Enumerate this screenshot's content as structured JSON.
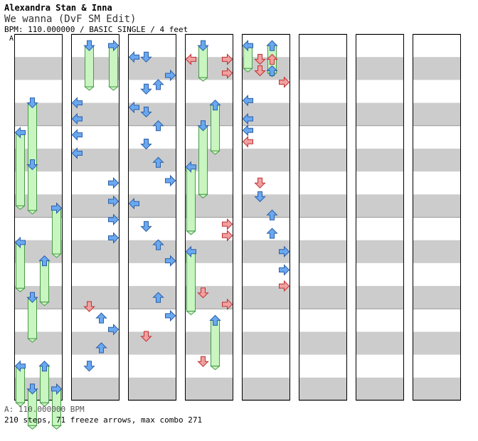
{
  "header": {
    "artist": "Alexandra Stan & Inna",
    "title": "We wanna (DvF SM Edit)",
    "info": "BPM: 110.000000 / BASIC SINGLE / 4 feet"
  },
  "bpm_marker": "A",
  "footer": {
    "bpm_change": "A: 110.000000 BPM",
    "stats": "210 steps, 71 freeze arrows, max combo 271"
  },
  "colors": {
    "band": "#cccccc",
    "quarter_arrow": "#6aa8f0",
    "eighth_arrow": "#f0a0a0",
    "freeze": "#c8f5c0",
    "freeze_border": "#4a9a4a"
  },
  "chart": {
    "lanes": [
      "left",
      "down",
      "up",
      "right"
    ],
    "column_count": 8,
    "rows_per_column": 16,
    "notes": [
      {
        "col": 0,
        "lane": 1,
        "row": 2.5,
        "type": "freeze",
        "len": 1.4
      },
      {
        "col": 0,
        "lane": 0,
        "row": 3.8,
        "type": "freeze",
        "len": 1.6
      },
      {
        "col": 0,
        "lane": 1,
        "row": 5.2,
        "type": "freeze",
        "len": 1.0
      },
      {
        "col": 0,
        "lane": 3,
        "row": 7.1,
        "type": "freeze",
        "len": 1.0
      },
      {
        "col": 0,
        "lane": 0,
        "row": 8.6,
        "type": "freeze",
        "len": 1.0
      },
      {
        "col": 0,
        "lane": 2,
        "row": 9.4,
        "type": "freeze",
        "len": 0.9
      },
      {
        "col": 0,
        "lane": 1,
        "row": 11.0,
        "type": "freeze",
        "len": 0.9
      },
      {
        "col": 0,
        "lane": 0,
        "row": 14.0,
        "type": "freeze",
        "len": 0.8
      },
      {
        "col": 0,
        "lane": 2,
        "row": 14.0,
        "type": "freeze",
        "len": 0.8
      },
      {
        "col": 0,
        "lane": 1,
        "row": 15.0,
        "type": "freeze",
        "len": 0.8
      },
      {
        "col": 0,
        "lane": 3,
        "row": 15.0,
        "type": "freeze",
        "len": 0.8
      },
      {
        "col": 1,
        "lane": 1,
        "row": 0.0,
        "type": "freeze",
        "len": 0.9
      },
      {
        "col": 1,
        "lane": 3,
        "row": 0.0,
        "type": "freeze",
        "len": 0.9
      },
      {
        "col": 1,
        "lane": 0,
        "row": 2.5,
        "type": "tap",
        "beat": 4
      },
      {
        "col": 1,
        "lane": 0,
        "row": 3.2,
        "type": "tap",
        "beat": 4
      },
      {
        "col": 1,
        "lane": 0,
        "row": 3.9,
        "type": "tap",
        "beat": 4
      },
      {
        "col": 1,
        "lane": 0,
        "row": 4.7,
        "type": "tap",
        "beat": 4
      },
      {
        "col": 1,
        "lane": 3,
        "row": 6.0,
        "type": "tap",
        "beat": 4
      },
      {
        "col": 1,
        "lane": 3,
        "row": 6.8,
        "type": "tap",
        "beat": 4
      },
      {
        "col": 1,
        "lane": 3,
        "row": 7.6,
        "type": "tap",
        "beat": 4
      },
      {
        "col": 1,
        "lane": 3,
        "row": 8.4,
        "type": "tap",
        "beat": 4
      },
      {
        "col": 1,
        "lane": 1,
        "row": 11.4,
        "type": "tap",
        "beat": 8
      },
      {
        "col": 1,
        "lane": 2,
        "row": 11.9,
        "type": "tap",
        "beat": 4
      },
      {
        "col": 1,
        "lane": 3,
        "row": 12.4,
        "type": "tap",
        "beat": 4
      },
      {
        "col": 1,
        "lane": 2,
        "row": 13.2,
        "type": "tap",
        "beat": 4
      },
      {
        "col": 1,
        "lane": 1,
        "row": 14.0,
        "type": "tap",
        "beat": 4
      },
      {
        "col": 2,
        "lane": 0,
        "row": 0.5,
        "type": "tap",
        "beat": 4
      },
      {
        "col": 2,
        "lane": 1,
        "row": 0.5,
        "type": "tap",
        "beat": 4
      },
      {
        "col": 2,
        "lane": 3,
        "row": 1.3,
        "type": "tap",
        "beat": 4
      },
      {
        "col": 2,
        "lane": 1,
        "row": 1.9,
        "type": "tap",
        "beat": 4
      },
      {
        "col": 2,
        "lane": 2,
        "row": 1.7,
        "type": "tap",
        "beat": 4
      },
      {
        "col": 2,
        "lane": 0,
        "row": 2.7,
        "type": "tap",
        "beat": 4
      },
      {
        "col": 2,
        "lane": 1,
        "row": 2.9,
        "type": "tap",
        "beat": 4
      },
      {
        "col": 2,
        "lane": 2,
        "row": 3.5,
        "type": "tap",
        "beat": 4
      },
      {
        "col": 2,
        "lane": 1,
        "row": 4.3,
        "type": "tap",
        "beat": 4
      },
      {
        "col": 2,
        "lane": 2,
        "row": 5.1,
        "type": "tap",
        "beat": 4
      },
      {
        "col": 2,
        "lane": 3,
        "row": 5.9,
        "type": "tap",
        "beat": 4
      },
      {
        "col": 2,
        "lane": 0,
        "row": 6.9,
        "type": "tap",
        "beat": 4
      },
      {
        "col": 2,
        "lane": 1,
        "row": 7.9,
        "type": "tap",
        "beat": 4
      },
      {
        "col": 2,
        "lane": 2,
        "row": 8.7,
        "type": "tap",
        "beat": 4
      },
      {
        "col": 2,
        "lane": 3,
        "row": 9.4,
        "type": "tap",
        "beat": 4
      },
      {
        "col": 2,
        "lane": 2,
        "row": 11.0,
        "type": "tap",
        "beat": 4
      },
      {
        "col": 2,
        "lane": 3,
        "row": 11.8,
        "type": "tap",
        "beat": 4
      },
      {
        "col": 2,
        "lane": 1,
        "row": 12.7,
        "type": "tap",
        "beat": 8
      },
      {
        "col": 3,
        "lane": 0,
        "row": 0.6,
        "type": "tap",
        "beat": 8
      },
      {
        "col": 3,
        "lane": 1,
        "row": 0.0,
        "type": "freeze",
        "len": 0.7
      },
      {
        "col": 3,
        "lane": 3,
        "row": 0.6,
        "type": "tap",
        "beat": 8
      },
      {
        "col": 3,
        "lane": 3,
        "row": 1.2,
        "type": "tap",
        "beat": 8
      },
      {
        "col": 3,
        "lane": 2,
        "row": 2.6,
        "type": "freeze",
        "len": 1.0
      },
      {
        "col": 3,
        "lane": 1,
        "row": 3.5,
        "type": "freeze",
        "len": 1.5
      },
      {
        "col": 3,
        "lane": 0,
        "row": 5.3,
        "type": "freeze",
        "len": 1.4
      },
      {
        "col": 3,
        "lane": 3,
        "row": 7.8,
        "type": "tap",
        "beat": 8
      },
      {
        "col": 3,
        "lane": 3,
        "row": 8.3,
        "type": "tap",
        "beat": 8
      },
      {
        "col": 3,
        "lane": 0,
        "row": 9.0,
        "type": "freeze",
        "len": 1.3
      },
      {
        "col": 3,
        "lane": 1,
        "row": 10.8,
        "type": "tap",
        "beat": 8
      },
      {
        "col": 3,
        "lane": 3,
        "row": 11.3,
        "type": "tap",
        "beat": 8
      },
      {
        "col": 3,
        "lane": 2,
        "row": 12.0,
        "type": "freeze",
        "len": 1.0
      },
      {
        "col": 3,
        "lane": 1,
        "row": 13.8,
        "type": "tap",
        "beat": 8
      },
      {
        "col": 4,
        "lane": 0,
        "row": 0.0,
        "type": "freeze",
        "len": 0.5
      },
      {
        "col": 4,
        "lane": 2,
        "row": 0.0,
        "type": "freeze",
        "len": 0.6
      },
      {
        "col": 4,
        "lane": 1,
        "row": 0.6,
        "type": "tap",
        "beat": 8
      },
      {
        "col": 4,
        "lane": 2,
        "row": 0.6,
        "type": "tap",
        "beat": 8
      },
      {
        "col": 4,
        "lane": 1,
        "row": 1.1,
        "type": "tap",
        "beat": 8
      },
      {
        "col": 4,
        "lane": 2,
        "row": 1.1,
        "type": "tap",
        "beat": 4
      },
      {
        "col": 4,
        "lane": 3,
        "row": 1.6,
        "type": "tap",
        "beat": 8
      },
      {
        "col": 4,
        "lane": 0,
        "row": 2.4,
        "type": "tap",
        "beat": 4
      },
      {
        "col": 4,
        "lane": 0,
        "row": 3.2,
        "type": "tap",
        "beat": 4
      },
      {
        "col": 4,
        "lane": 0,
        "row": 3.7,
        "type": "tap",
        "beat": 4
      },
      {
        "col": 4,
        "lane": 0,
        "row": 4.2,
        "type": "tap",
        "beat": 8
      },
      {
        "col": 4,
        "lane": 1,
        "row": 6.0,
        "type": "tap",
        "beat": 8
      },
      {
        "col": 4,
        "lane": 1,
        "row": 6.6,
        "type": "tap",
        "beat": 4
      },
      {
        "col": 4,
        "lane": 2,
        "row": 7.4,
        "type": "tap",
        "beat": 4
      },
      {
        "col": 4,
        "lane": 2,
        "row": 8.2,
        "type": "tap",
        "beat": 4
      },
      {
        "col": 4,
        "lane": 3,
        "row": 9.0,
        "type": "tap",
        "beat": 4
      },
      {
        "col": 4,
        "lane": 3,
        "row": 9.8,
        "type": "tap",
        "beat": 4
      },
      {
        "col": 4,
        "lane": 3,
        "row": 10.5,
        "type": "tap",
        "beat": 8
      }
    ]
  }
}
